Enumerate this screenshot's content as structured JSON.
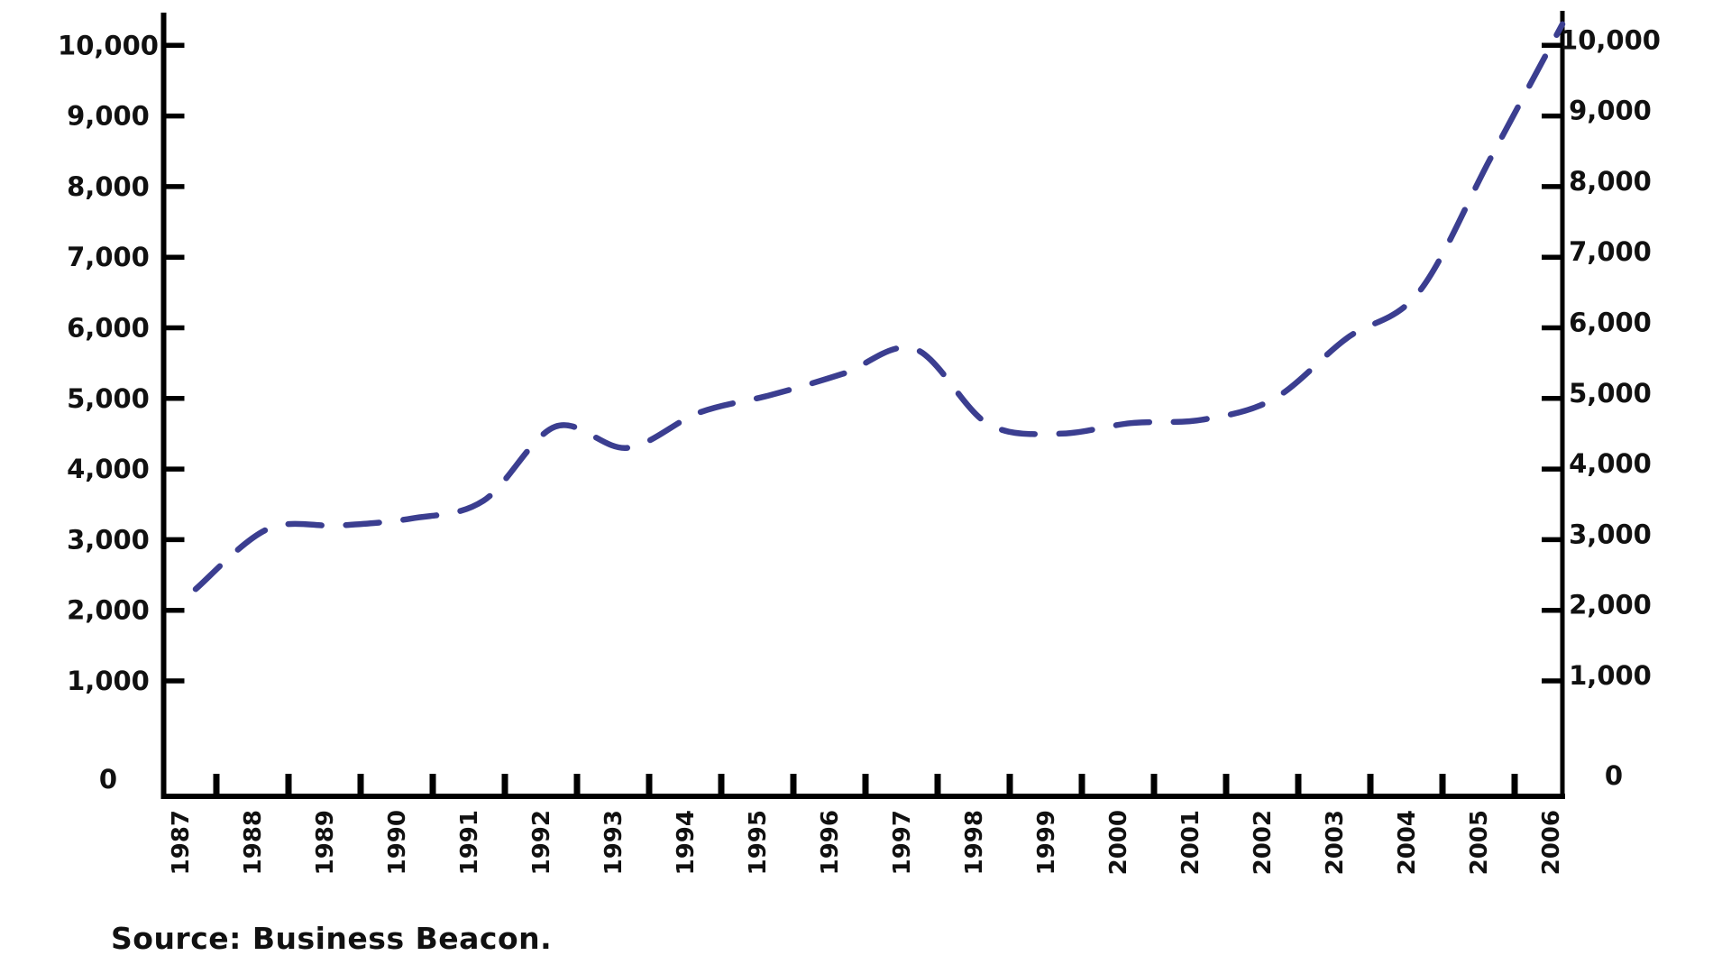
{
  "chart_data": {
    "type": "line",
    "title": "",
    "xlabel": "",
    "ylabel": "",
    "categories": [
      "1987",
      "1988",
      "1989",
      "1990",
      "1991",
      "1992",
      "1993",
      "1994",
      "1995",
      "1996",
      "1997",
      "1998",
      "1999",
      "2000",
      "2001",
      "2002",
      "2003",
      "2004",
      "2005",
      "2006"
    ],
    "series": [
      {
        "values": [
          2300,
          3150,
          3200,
          3300,
          3550,
          4600,
          4300,
          4800,
          5050,
          5350,
          5700,
          4650,
          4500,
          4650,
          4700,
          5000,
          5850,
          6500,
          8400,
          10300
        ],
        "color": "#3b3e90",
        "line_style": "dashed",
        "smoothed": true
      }
    ],
    "ylim": [
      0,
      10000
    ],
    "y_tick_interval": 1000,
    "grid": false,
    "legend": "none",
    "y_axis": {
      "mirrored_right_axis": true,
      "tick_labels": [
        {
          "value": 0,
          "label": "0"
        },
        {
          "value": 1000,
          "label": "1,000"
        },
        {
          "value": 2000,
          "label": "2,000"
        },
        {
          "value": 3000,
          "label": "3,000"
        },
        {
          "value": 4000,
          "label": "4,000"
        },
        {
          "value": 5000,
          "label": "5,000"
        },
        {
          "value": 6000,
          "label": "6,000"
        },
        {
          "value": 7000,
          "label": "7,000"
        },
        {
          "value": 8000,
          "label": "8,000"
        },
        {
          "value": 9000,
          "label": "9,000"
        },
        {
          "value": 10000,
          "label": "10,000"
        }
      ]
    }
  },
  "source_note": "Source: Business Beacon.",
  "colors": {
    "line": "#3b3e90",
    "axis": "#000000",
    "text": "#111111",
    "background": "#ffffff"
  }
}
